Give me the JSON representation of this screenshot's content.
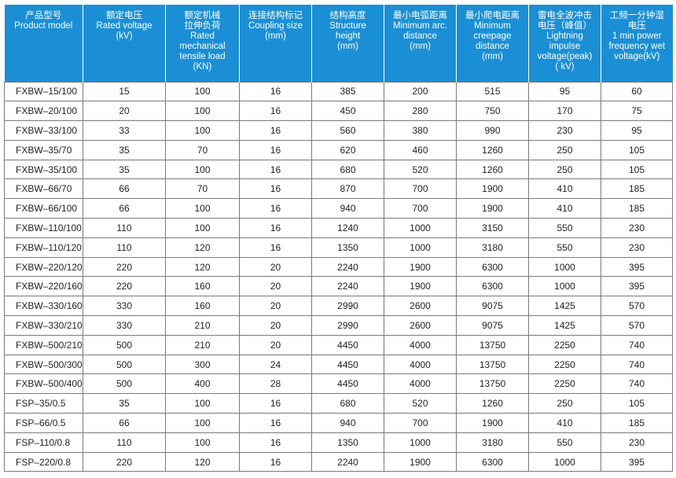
{
  "table": {
    "headers": [
      "产品型号\nProduct model",
      "额定电压\nRated voltage\n(kV)",
      "额定机械\n拉伸负荷\nRated\nmechanical\ntensile load\n(KN)",
      "连接结构标记\nCoupling size\n(mm)",
      "结构高度\nStructure\nheight\n(mm)",
      "最小电弧距离\nMinimum arc.\ndistance\n(mm)",
      "最小爬电距离\nMinimum\ncreepage\ndistance\n(mm)",
      "雷电全波冲击\n电压（峰值）\nLightning\nimpulse\nvoltage(peak)\n( kV)",
      "工频一分钟湿\n电压\n1 min power\nfrequency wet\nvoltage(kV)"
    ],
    "rows": [
      [
        "FXBW–15/100",
        "15",
        "100",
        "16",
        "385",
        "200",
        "515",
        "95",
        "60"
      ],
      [
        "FXBW–20/100",
        "20",
        "100",
        "16",
        "450",
        "280",
        "750",
        "170",
        "75"
      ],
      [
        "FXBW–33/100",
        "33",
        "100",
        "16",
        "560",
        "380",
        "990",
        "230",
        "95"
      ],
      [
        "FXBW–35/70",
        "35",
        "70",
        "16",
        "620",
        "460",
        "1260",
        "250",
        "105"
      ],
      [
        "FXBW–35/100",
        "35",
        "100",
        "16",
        "680",
        "520",
        "1260",
        "250",
        "105"
      ],
      [
        "FXBW–66/70",
        "66",
        "70",
        "16",
        "870",
        "700",
        "1900",
        "410",
        "185"
      ],
      [
        "FXBW–66/100",
        "66",
        "100",
        "16",
        "940",
        "700",
        "1900",
        "410",
        "185"
      ],
      [
        "FXBW–110/100",
        "110",
        "100",
        "16",
        "1240",
        "1000",
        "3150",
        "550",
        "230"
      ],
      [
        "FXBW–110/120",
        "110",
        "120",
        "16",
        "1350",
        "1000",
        "3180",
        "550",
        "230"
      ],
      [
        "FXBW–220/120",
        "220",
        "120",
        "20",
        "2240",
        "1900",
        "6300",
        "1000",
        "395"
      ],
      [
        "FXBW–220/160",
        "220",
        "160",
        "20",
        "2240",
        "1900",
        "6300",
        "1000",
        "395"
      ],
      [
        "FXBW–330/160",
        "330",
        "160",
        "20",
        "2990",
        "2600",
        "9075",
        "1425",
        "570"
      ],
      [
        "FXBW–330/210",
        "330",
        "210",
        "20",
        "2990",
        "2600",
        "9075",
        "1425",
        "570"
      ],
      [
        "FXBW–500/210",
        "500",
        "210",
        "20",
        "4450",
        "4000",
        "13750",
        "2250",
        "740"
      ],
      [
        "FXBW–500/300",
        "500",
        "300",
        "24",
        "4450",
        "4000",
        "13750",
        "2250",
        "740"
      ],
      [
        "FXBW–500/400",
        "500",
        "400",
        "28",
        "4450",
        "4000",
        "13750",
        "2250",
        "740"
      ],
      [
        "FSP–35/0.5",
        "35",
        "100",
        "16",
        "680",
        "520",
        "1260",
        "250",
        "105"
      ],
      [
        "FSP–66/0.5",
        "66",
        "100",
        "16",
        "940",
        "700",
        "1900",
        "410",
        "185"
      ],
      [
        "FSP–110/0.8",
        "110",
        "100",
        "16",
        "1350",
        "1000",
        "3180",
        "550",
        "230"
      ],
      [
        "FSP–220/0.8",
        "220",
        "120",
        "16",
        "2240",
        "1900",
        "6300",
        "1000",
        "395"
      ]
    ],
    "header_color": "#1a8fd6",
    "header_text_color": "#ffffff",
    "border_color": "#7a7a7a"
  }
}
